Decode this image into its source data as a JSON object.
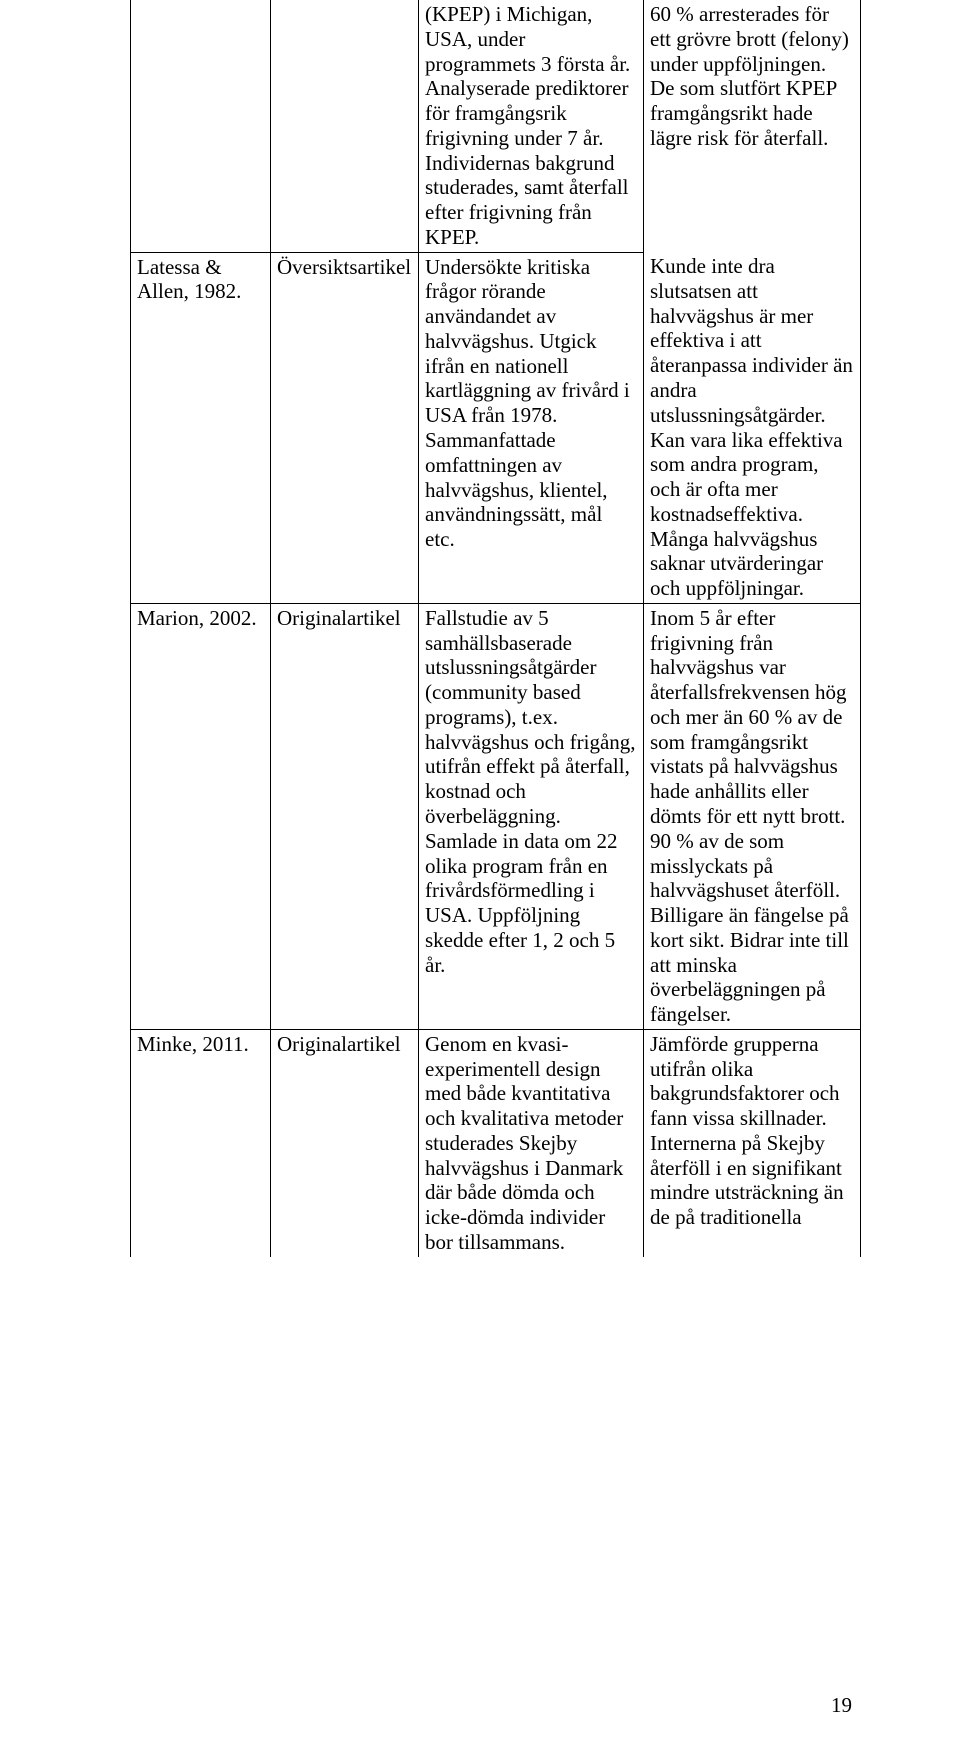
{
  "rows": [
    {
      "c1": "",
      "c2": "",
      "c3": "(KPEP) i Michigan, USA, under programmets 3 första år. Analyserade prediktorer för framgångsrik frigivning under 7 år. Individernas bakgrund studerades, samt återfall efter frigivning från KPEP.",
      "c4": "60 % arresterades för ett grövre brott (felony) under uppföljningen. De som slutfört KPEP framgångsrikt hade lägre risk för återfall.",
      "c4_rowspan": 1
    },
    {
      "c1": "Latessa & Allen, 1982.",
      "c2": "Översiktsartikel",
      "c3": "Undersökte kritiska frågor rörande användandet av halvvägshus. Utgick ifrån en nationell kartläggning av frivård i USA från 1978. Sammanfattade omfattningen av halvvägshus, klientel, användningssätt, mål etc.",
      "c4": "Kunde inte dra slutsatsen att halvvägshus är mer effektiva i att återanpassa individer än andra utslussningsåtgärder. Kan vara lika effektiva som andra program, och är ofta mer kostnadseffektiva. Många halvvägshus saknar utvärderingar och uppföljningar."
    },
    {
      "c1": "Marion, 2002.",
      "c2": "Originalartikel",
      "c3": "Fallstudie av 5 samhällsbaserade utslussningsåtgärder (community based programs), t.ex. halvvägshus och frigång, utifrån effekt på återfall, kostnad och överbeläggning. Samlade in data om 22 olika program från en frivårdsförmedling i USA. Uppföljning skedde efter 1, 2 och 5 år.",
      "c4": "Inom 5 år efter frigivning från halvvägshus var återfallsfrekvensen hög och mer än 60 % av de som framgångsrikt vistats på halvvägshus hade anhållits eller dömts för ett nytt brott. 90 % av de som misslyckats på halvvägshuset återföll. Billigare än fängelse på kort sikt. Bidrar inte till att minska överbeläggningen på fängelser."
    },
    {
      "c1": "Minke, 2011.",
      "c2": "Originalartikel",
      "c3": "Genom en kvasi-experimentell design med både kvantitativa och kvalitativa metoder studerades Skejby halvvägshus i Danmark där både dömda och icke-dömda individer bor tillsammans.",
      "c4": "Jämförde grupperna utifrån olika bakgrundsfaktorer och fann vissa skillnader. Internerna på Skejby återföll i en signifikant mindre utsträckning än de på traditionella"
    }
  ],
  "page_number": "19"
}
